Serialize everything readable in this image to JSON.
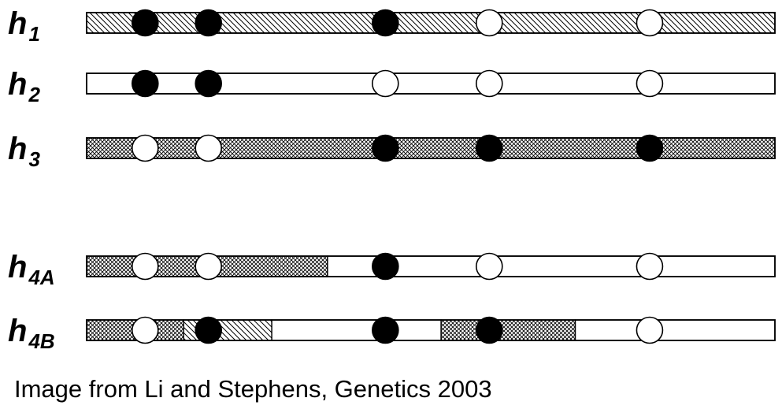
{
  "haplotypes": [
    {
      "label": "h",
      "sub": "1",
      "segments": [
        {
          "from": 0,
          "to": 1,
          "pattern": "diagonal-hatch"
        }
      ],
      "alleles": [
        "black",
        "black",
        "black",
        "white",
        "white"
      ]
    },
    {
      "label": "h",
      "sub": "2",
      "segments": [
        {
          "from": 0,
          "to": 1,
          "pattern": "plain"
        }
      ],
      "alleles": [
        "black",
        "black",
        "white",
        "white",
        "white"
      ]
    },
    {
      "label": "h",
      "sub": "3",
      "segments": [
        {
          "from": 0,
          "to": 1,
          "pattern": "crosshatch"
        }
      ],
      "alleles": [
        "white",
        "white",
        "black",
        "black",
        "black"
      ]
    },
    {
      "label": "h",
      "sub": "4A",
      "segments": [
        {
          "from": 0,
          "to": 0.35,
          "pattern": "crosshatch"
        },
        {
          "from": 0.35,
          "to": 1,
          "pattern": "plain"
        }
      ],
      "alleles": [
        "white",
        "white",
        "black",
        "white",
        "white"
      ]
    },
    {
      "label": "h",
      "sub": "4B",
      "segments": [
        {
          "from": 0,
          "to": 0.141,
          "pattern": "crosshatch"
        },
        {
          "from": 0.141,
          "to": 0.269,
          "pattern": "diagonal-hatch"
        },
        {
          "from": 0.269,
          "to": 0.515,
          "pattern": "plain"
        },
        {
          "from": 0.515,
          "to": 0.71,
          "pattern": "crosshatch"
        },
        {
          "from": 0.71,
          "to": 1,
          "pattern": "plain"
        }
      ],
      "alleles": [
        "white",
        "black",
        "black",
        "black",
        "white"
      ]
    }
  ],
  "marker_positions": [
    0.085,
    0.177,
    0.434,
    0.585,
    0.818
  ],
  "colors": {
    "ink": "#000000",
    "background": "#ffffff"
  },
  "caption": "Image from Li and Stephens, Genetics 2003"
}
